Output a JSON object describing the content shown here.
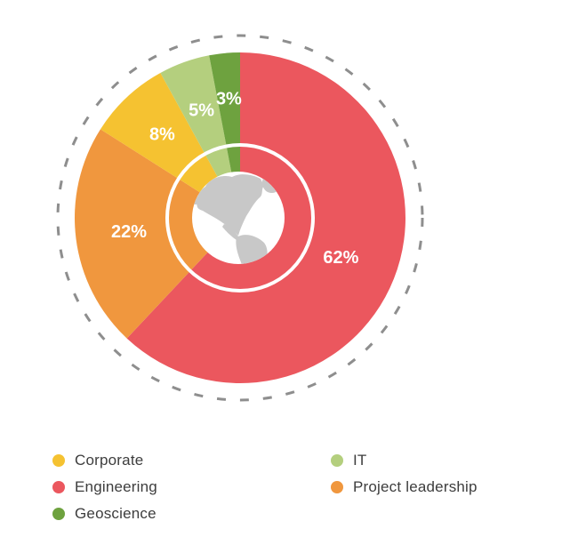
{
  "chart_data": {
    "type": "pie",
    "title": "",
    "start_angle_deg": 0,
    "direction": "clockwise",
    "legend_position": "bottom",
    "legend_columns": 2,
    "outer_ring_style": "dashed",
    "center_icon": "globe",
    "slices": [
      {
        "label": "Engineering",
        "value": 62,
        "display": "62%",
        "color": "#EB575E"
      },
      {
        "label": "Project leadership",
        "value": 22,
        "display": "22%",
        "color": "#F0973E"
      },
      {
        "label": "Corporate",
        "value": 8,
        "display": "8%",
        "color": "#F5C231"
      },
      {
        "label": "IT",
        "value": 5,
        "display": "5%",
        "color": "#B4CF7E"
      },
      {
        "label": "Geoscience",
        "value": 3,
        "display": "3%",
        "color": "#6EA23F"
      }
    ]
  },
  "legend": {
    "columns": [
      [
        {
          "label": "Corporate",
          "color": "#F5C231"
        },
        {
          "label": "Engineering",
          "color": "#EB575E"
        },
        {
          "label": "Geoscience",
          "color": "#6EA23F"
        }
      ],
      [
        {
          "label": "IT",
          "color": "#B4CF7E"
        },
        {
          "label": "Project leadership",
          "color": "#F0973E"
        }
      ]
    ]
  },
  "styles": {
    "background_color": "#FFFFFF",
    "dashed_ring_color": "#8E8E8E",
    "inner_ring_color": "#FFFFFF",
    "slice_label_color": "#FFFFFF",
    "legend_text_color": "#3D3D3D",
    "globe_sea_color": "#FFFFFF",
    "globe_land_color": "#C8C8C8"
  }
}
